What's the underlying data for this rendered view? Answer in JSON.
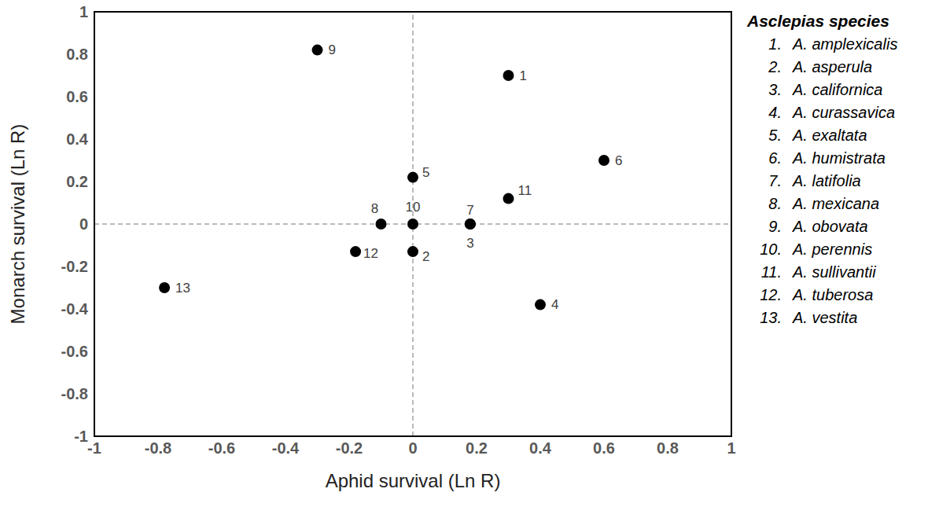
{
  "chart_data": {
    "type": "scatter",
    "x": [
      0.3,
      0,
      0.18,
      0.4,
      0,
      0.6,
      0.18,
      -0.1,
      -0.3,
      0,
      0.3,
      -0.18,
      -0.78
    ],
    "values": [
      0.7,
      -0.13,
      0,
      -0.38,
      0.22,
      0.3,
      0,
      0,
      0.82,
      0,
      0.12,
      -0.13,
      -0.3
    ],
    "point_labels": [
      "1",
      "2",
      "3",
      "4",
      "5",
      "6",
      "7",
      "8",
      "9",
      "10",
      "11",
      "12",
      "13"
    ],
    "color": "#000000",
    "marker": "circle",
    "xlabel": "Aphid survival (Ln R)",
    "ylabel": "Monarch survival (Ln R)",
    "xlim": [
      -1,
      1
    ],
    "ylim": [
      -1,
      1
    ],
    "xticks": [
      -1,
      -0.8,
      -0.6,
      -0.4,
      -0.2,
      0,
      0.2,
      0.4,
      0.6,
      0.8,
      1
    ],
    "yticks": [
      -1,
      -0.8,
      -0.6,
      -0.4,
      -0.2,
      0,
      0.2,
      0.4,
      0.6,
      0.8,
      1
    ],
    "grid": false,
    "reference_lines": {
      "x": 0,
      "y": 0
    },
    "species_title": "Asclepias species",
    "species_numbers": [
      "1.",
      "2.",
      "3.",
      "4.",
      "5.",
      "6.",
      "7.",
      "8.",
      "9.",
      "10.",
      "11.",
      "12.",
      "13."
    ],
    "species": [
      "A. amplexicalis",
      "A. asperula",
      "A. californica",
      "A. curassavica",
      "A. exaltata",
      "A. humistrata",
      "A. latifolia",
      "A. mexicana",
      "A. obovata",
      "A. perennis",
      "A. sullivantii",
      "A. tuberosa",
      "A. vestita"
    ]
  }
}
